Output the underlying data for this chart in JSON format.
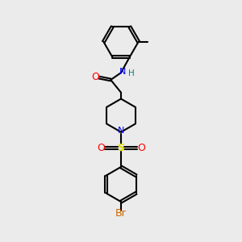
{
  "bg_color": "#ebebeb",
  "bond_color": "#000000",
  "bond_width": 1.5,
  "figsize": [
    3.0,
    3.0
  ],
  "dpi": 100,
  "xlim": [
    0,
    10
  ],
  "ylim": [
    0,
    15
  ]
}
